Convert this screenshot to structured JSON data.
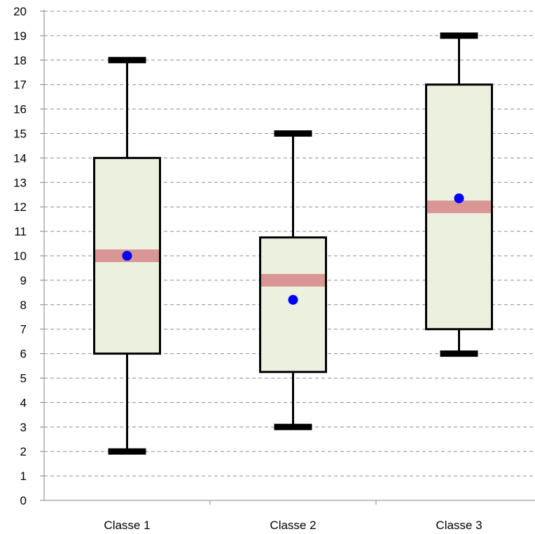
{
  "chart_data": {
    "type": "boxplot",
    "title": "",
    "xlabel": "",
    "ylabel": "",
    "ylim": [
      0,
      20
    ],
    "y_ticks": [
      0,
      1,
      2,
      3,
      4,
      5,
      6,
      7,
      8,
      9,
      10,
      11,
      12,
      13,
      14,
      15,
      16,
      17,
      18,
      19,
      20
    ],
    "grid": "horizontal dashed",
    "legend": "none",
    "categories": [
      "Classe 1",
      "Classe 2",
      "Classe 3"
    ],
    "boxes": [
      {
        "category": "Classe 1",
        "min": 2,
        "q1": 6,
        "median": 10,
        "q3": 14,
        "max": 18,
        "mean": 10
      },
      {
        "category": "Classe 2",
        "min": 3,
        "q1": 5.25,
        "median": 9,
        "q3": 10.75,
        "max": 15,
        "mean": 8.2
      },
      {
        "category": "Classe 3",
        "min": 6,
        "q1": 7,
        "median": 12,
        "q3": 17,
        "max": 19,
        "mean": 12.35
      }
    ],
    "colors": {
      "box_fill": "#ebf1de",
      "box_stroke": "#000000",
      "median": "#da9694",
      "mean": "#0000ff",
      "grid": "#8c8c8c"
    }
  }
}
